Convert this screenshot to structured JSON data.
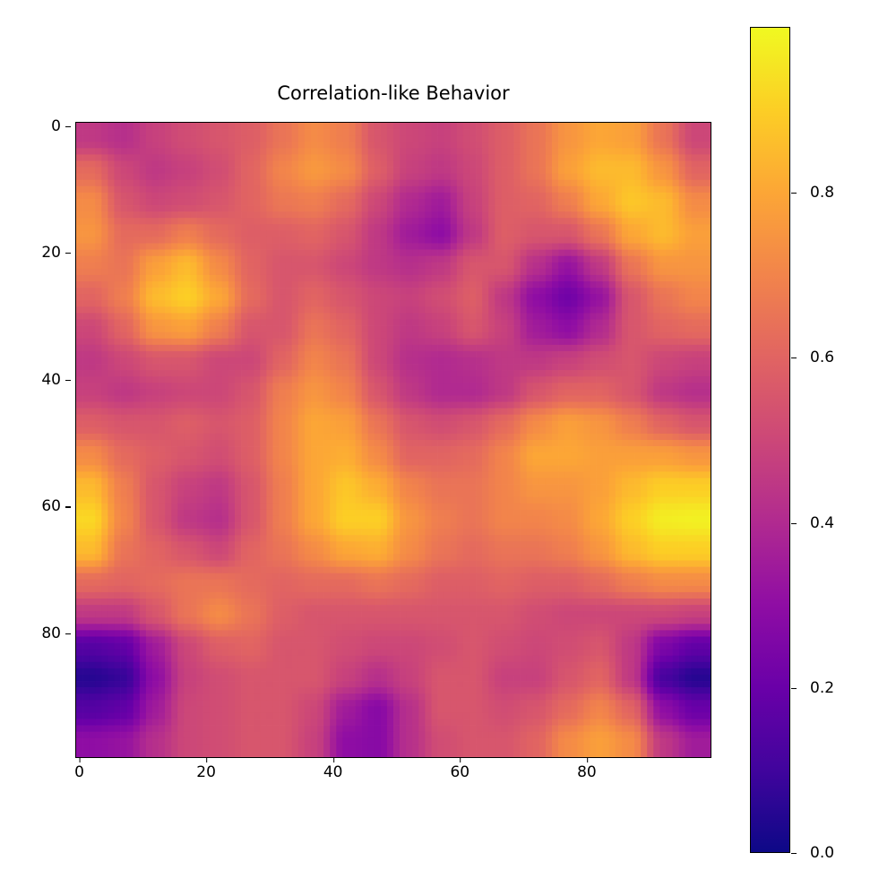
{
  "chart_data": {
    "type": "heatmap",
    "title": "Correlation-like Behavior",
    "xlabel": "",
    "ylabel": "",
    "shape": [
      100,
      100
    ],
    "xlim": [
      0,
      99
    ],
    "ylim": [
      99,
      0
    ],
    "x_ticks": [
      "0",
      "20",
      "40",
      "60",
      "80"
    ],
    "y_ticks": [
      "0",
      "20",
      "40",
      "60",
      "80"
    ],
    "colormap": "plasma",
    "color_range": [
      0.0,
      1.0
    ],
    "colorbar_ticks": [
      "0.0",
      "0.2",
      "0.4",
      "0.6",
      "0.8"
    ],
    "colormap_stops": [
      "#0d0887",
      "#41049d",
      "#6a00a8",
      "#8f0da4",
      "#b12a90",
      "#cc4778",
      "#e16462",
      "#f2844b",
      "#fca636",
      "#fcce25",
      "#f0f921"
    ],
    "grid_note": "values sampled on a 20x20 grid (every 5 cells), interpolated to 100x100",
    "values": [
      [
        0.45,
        0.42,
        0.48,
        0.52,
        0.55,
        0.58,
        0.65,
        0.72,
        0.68,
        0.55,
        0.5,
        0.48,
        0.52,
        0.58,
        0.65,
        0.75,
        0.8,
        0.78,
        0.65,
        0.5
      ],
      [
        0.62,
        0.5,
        0.45,
        0.48,
        0.52,
        0.6,
        0.7,
        0.76,
        0.72,
        0.58,
        0.48,
        0.45,
        0.5,
        0.58,
        0.65,
        0.78,
        0.85,
        0.85,
        0.75,
        0.6
      ],
      [
        0.72,
        0.55,
        0.5,
        0.52,
        0.55,
        0.6,
        0.66,
        0.68,
        0.62,
        0.5,
        0.4,
        0.35,
        0.48,
        0.58,
        0.6,
        0.68,
        0.8,
        0.88,
        0.85,
        0.72
      ],
      [
        0.75,
        0.62,
        0.62,
        0.68,
        0.62,
        0.58,
        0.58,
        0.6,
        0.55,
        0.45,
        0.35,
        0.3,
        0.45,
        0.58,
        0.55,
        0.55,
        0.65,
        0.8,
        0.85,
        0.78
      ],
      [
        0.68,
        0.65,
        0.78,
        0.85,
        0.72,
        0.6,
        0.55,
        0.55,
        0.5,
        0.45,
        0.42,
        0.45,
        0.55,
        0.55,
        0.42,
        0.32,
        0.45,
        0.65,
        0.75,
        0.75
      ],
      [
        0.6,
        0.68,
        0.85,
        0.9,
        0.8,
        0.62,
        0.55,
        0.6,
        0.55,
        0.5,
        0.48,
        0.52,
        0.58,
        0.45,
        0.3,
        0.22,
        0.32,
        0.55,
        0.65,
        0.7
      ],
      [
        0.5,
        0.6,
        0.75,
        0.78,
        0.68,
        0.55,
        0.55,
        0.65,
        0.6,
        0.5,
        0.45,
        0.48,
        0.55,
        0.48,
        0.35,
        0.3,
        0.4,
        0.55,
        0.6,
        0.62
      ],
      [
        0.45,
        0.5,
        0.55,
        0.55,
        0.5,
        0.5,
        0.6,
        0.7,
        0.65,
        0.5,
        0.42,
        0.4,
        0.42,
        0.45,
        0.45,
        0.48,
        0.52,
        0.55,
        0.5,
        0.48
      ],
      [
        0.48,
        0.45,
        0.48,
        0.5,
        0.5,
        0.55,
        0.68,
        0.75,
        0.7,
        0.55,
        0.45,
        0.4,
        0.4,
        0.45,
        0.55,
        0.6,
        0.6,
        0.55,
        0.45,
        0.42
      ],
      [
        0.58,
        0.55,
        0.55,
        0.58,
        0.55,
        0.58,
        0.7,
        0.8,
        0.78,
        0.65,
        0.55,
        0.52,
        0.55,
        0.62,
        0.72,
        0.78,
        0.75,
        0.68,
        0.6,
        0.55
      ],
      [
        0.72,
        0.62,
        0.58,
        0.55,
        0.52,
        0.58,
        0.7,
        0.8,
        0.82,
        0.72,
        0.6,
        0.6,
        0.62,
        0.7,
        0.8,
        0.8,
        0.78,
        0.78,
        0.78,
        0.75
      ],
      [
        0.85,
        0.68,
        0.55,
        0.48,
        0.45,
        0.55,
        0.68,
        0.8,
        0.88,
        0.82,
        0.7,
        0.65,
        0.65,
        0.7,
        0.75,
        0.75,
        0.78,
        0.85,
        0.9,
        0.9
      ],
      [
        0.92,
        0.7,
        0.55,
        0.45,
        0.42,
        0.55,
        0.68,
        0.8,
        0.9,
        0.9,
        0.75,
        0.68,
        0.65,
        0.7,
        0.7,
        0.72,
        0.8,
        0.9,
        0.97,
        0.98
      ],
      [
        0.85,
        0.65,
        0.6,
        0.55,
        0.5,
        0.6,
        0.65,
        0.72,
        0.8,
        0.82,
        0.72,
        0.65,
        0.62,
        0.65,
        0.65,
        0.68,
        0.75,
        0.85,
        0.9,
        0.9
      ],
      [
        0.62,
        0.6,
        0.62,
        0.65,
        0.65,
        0.62,
        0.6,
        0.62,
        0.62,
        0.65,
        0.62,
        0.58,
        0.58,
        0.6,
        0.58,
        0.58,
        0.62,
        0.68,
        0.72,
        0.72
      ],
      [
        0.45,
        0.45,
        0.55,
        0.65,
        0.72,
        0.65,
        0.58,
        0.55,
        0.55,
        0.55,
        0.55,
        0.55,
        0.55,
        0.55,
        0.52,
        0.5,
        0.5,
        0.5,
        0.5,
        0.48
      ],
      [
        0.15,
        0.18,
        0.35,
        0.5,
        0.58,
        0.6,
        0.55,
        0.55,
        0.52,
        0.5,
        0.5,
        0.52,
        0.55,
        0.52,
        0.5,
        0.52,
        0.55,
        0.45,
        0.25,
        0.18
      ],
      [
        0.05,
        0.08,
        0.3,
        0.48,
        0.52,
        0.55,
        0.55,
        0.55,
        0.48,
        0.42,
        0.48,
        0.55,
        0.55,
        0.48,
        0.48,
        0.55,
        0.6,
        0.45,
        0.12,
        0.05
      ],
      [
        0.15,
        0.18,
        0.35,
        0.5,
        0.52,
        0.55,
        0.55,
        0.5,
        0.35,
        0.28,
        0.42,
        0.55,
        0.55,
        0.52,
        0.55,
        0.62,
        0.7,
        0.6,
        0.3,
        0.2
      ],
      [
        0.3,
        0.32,
        0.42,
        0.5,
        0.52,
        0.55,
        0.55,
        0.48,
        0.3,
        0.28,
        0.42,
        0.52,
        0.55,
        0.55,
        0.6,
        0.72,
        0.78,
        0.72,
        0.45,
        0.35
      ]
    ]
  }
}
